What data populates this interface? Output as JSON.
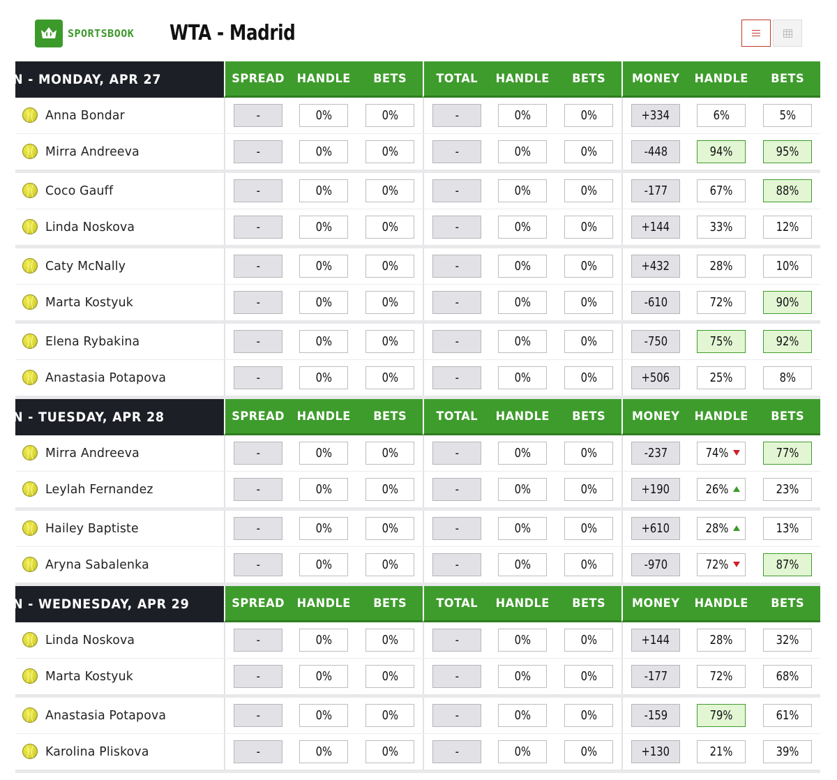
{
  "brand": {
    "logo_text": "SPORTSBOOK",
    "accent": "#3e9c2c",
    "dark": "#1d1f26"
  },
  "page": {
    "title": "WTA - Madrid"
  },
  "columns": [
    "SPREAD",
    "HANDLE",
    "BETS",
    "TOTAL",
    "HANDLE",
    "BETS",
    "MONEY",
    "HANDLE",
    "BETS"
  ],
  "sections": [
    {
      "date_label": "N - MONDAY, APR 27",
      "matches": [
        {
          "players": [
            {
              "name": "Anna Bondar",
              "spread": "-",
              "spread_handle": "0%",
              "spread_bets": "0%",
              "total": "-",
              "total_handle": "0%",
              "total_bets": "0%",
              "money": "+334",
              "money_handle": "6%",
              "money_bets": "5%",
              "handle_hl": false,
              "bets_hl": false,
              "arrow": ""
            },
            {
              "name": "Mirra Andreeva",
              "spread": "-",
              "spread_handle": "0%",
              "spread_bets": "0%",
              "total": "-",
              "total_handle": "0%",
              "total_bets": "0%",
              "money": "-448",
              "money_handle": "94%",
              "money_bets": "95%",
              "handle_hl": true,
              "bets_hl": true,
              "arrow": ""
            }
          ]
        },
        {
          "players": [
            {
              "name": "Coco Gauff",
              "spread": "-",
              "spread_handle": "0%",
              "spread_bets": "0%",
              "total": "-",
              "total_handle": "0%",
              "total_bets": "0%",
              "money": "-177",
              "money_handle": "67%",
              "money_bets": "88%",
              "handle_hl": false,
              "bets_hl": true,
              "arrow": ""
            },
            {
              "name": "Linda Noskova",
              "spread": "-",
              "spread_handle": "0%",
              "spread_bets": "0%",
              "total": "-",
              "total_handle": "0%",
              "total_bets": "0%",
              "money": "+144",
              "money_handle": "33%",
              "money_bets": "12%",
              "handle_hl": false,
              "bets_hl": false,
              "arrow": ""
            }
          ]
        },
        {
          "players": [
            {
              "name": "Caty McNally",
              "spread": "-",
              "spread_handle": "0%",
              "spread_bets": "0%",
              "total": "-",
              "total_handle": "0%",
              "total_bets": "0%",
              "money": "+432",
              "money_handle": "28%",
              "money_bets": "10%",
              "handle_hl": false,
              "bets_hl": false,
              "arrow": ""
            },
            {
              "name": "Marta Kostyuk",
              "spread": "-",
              "spread_handle": "0%",
              "spread_bets": "0%",
              "total": "-",
              "total_handle": "0%",
              "total_bets": "0%",
              "money": "-610",
              "money_handle": "72%",
              "money_bets": "90%",
              "handle_hl": false,
              "bets_hl": true,
              "arrow": ""
            }
          ]
        },
        {
          "players": [
            {
              "name": "Elena Rybakina",
              "spread": "-",
              "spread_handle": "0%",
              "spread_bets": "0%",
              "total": "-",
              "total_handle": "0%",
              "total_bets": "0%",
              "money": "-750",
              "money_handle": "75%",
              "money_bets": "92%",
              "handle_hl": true,
              "bets_hl": true,
              "arrow": ""
            },
            {
              "name": "Anastasia Potapova",
              "spread": "-",
              "spread_handle": "0%",
              "spread_bets": "0%",
              "total": "-",
              "total_handle": "0%",
              "total_bets": "0%",
              "money": "+506",
              "money_handle": "25%",
              "money_bets": "8%",
              "handle_hl": false,
              "bets_hl": false,
              "arrow": ""
            }
          ]
        }
      ]
    },
    {
      "date_label": "N - TUESDAY, APR 28",
      "matches": [
        {
          "players": [
            {
              "name": "Mirra Andreeva",
              "spread": "-",
              "spread_handle": "0%",
              "spread_bets": "0%",
              "total": "-",
              "total_handle": "0%",
              "total_bets": "0%",
              "money": "-237",
              "money_handle": "74%",
              "money_bets": "77%",
              "handle_hl": false,
              "bets_hl": true,
              "arrow": "down"
            },
            {
              "name": "Leylah Fernandez",
              "spread": "-",
              "spread_handle": "0%",
              "spread_bets": "0%",
              "total": "-",
              "total_handle": "0%",
              "total_bets": "0%",
              "money": "+190",
              "money_handle": "26%",
              "money_bets": "23%",
              "handle_hl": false,
              "bets_hl": false,
              "arrow": "up"
            }
          ]
        },
        {
          "players": [
            {
              "name": "Hailey Baptiste",
              "spread": "-",
              "spread_handle": "0%",
              "spread_bets": "0%",
              "total": "-",
              "total_handle": "0%",
              "total_bets": "0%",
              "money": "+610",
              "money_handle": "28%",
              "money_bets": "13%",
              "handle_hl": false,
              "bets_hl": false,
              "arrow": "up"
            },
            {
              "name": "Aryna Sabalenka",
              "spread": "-",
              "spread_handle": "0%",
              "spread_bets": "0%",
              "total": "-",
              "total_handle": "0%",
              "total_bets": "0%",
              "money": "-970",
              "money_handle": "72%",
              "money_bets": "87%",
              "handle_hl": false,
              "bets_hl": true,
              "arrow": "down"
            }
          ]
        }
      ]
    },
    {
      "date_label": "N - WEDNESDAY, APR 29",
      "matches": [
        {
          "players": [
            {
              "name": "Linda Noskova",
              "spread": "-",
              "spread_handle": "0%",
              "spread_bets": "0%",
              "total": "-",
              "total_handle": "0%",
              "total_bets": "0%",
              "money": "+144",
              "money_handle": "28%",
              "money_bets": "32%",
              "handle_hl": false,
              "bets_hl": false,
              "arrow": ""
            },
            {
              "name": "Marta Kostyuk",
              "spread": "-",
              "spread_handle": "0%",
              "spread_bets": "0%",
              "total": "-",
              "total_handle": "0%",
              "total_bets": "0%",
              "money": "-177",
              "money_handle": "72%",
              "money_bets": "68%",
              "handle_hl": false,
              "bets_hl": false,
              "arrow": ""
            }
          ]
        },
        {
          "players": [
            {
              "name": "Anastasia Potapova",
              "spread": "-",
              "spread_handle": "0%",
              "spread_bets": "0%",
              "total": "-",
              "total_handle": "0%",
              "total_bets": "0%",
              "money": "-159",
              "money_handle": "79%",
              "money_bets": "61%",
              "handle_hl": true,
              "bets_hl": false,
              "arrow": ""
            },
            {
              "name": "Karolina Pliskova",
              "spread": "-",
              "spread_handle": "0%",
              "spread_bets": "0%",
              "total": "-",
              "total_handle": "0%",
              "total_bets": "0%",
              "money": "+130",
              "money_handle": "21%",
              "money_bets": "39%",
              "handle_hl": false,
              "bets_hl": false,
              "arrow": ""
            }
          ]
        }
      ]
    }
  ]
}
